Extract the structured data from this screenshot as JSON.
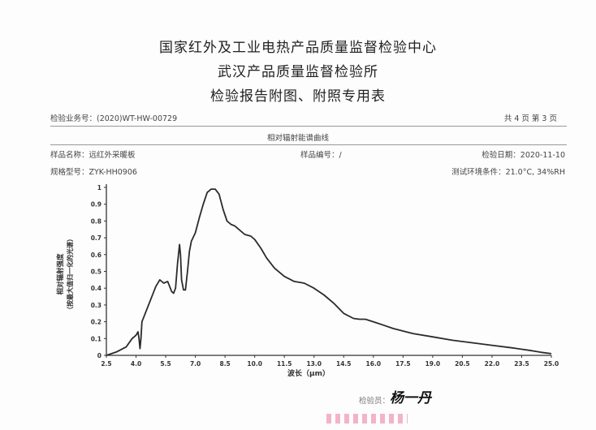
{
  "header": {
    "line1": "国家红外及工业电热产品质量监督检验中心",
    "line2": "武汉产品质量监督检验所",
    "line3": "检验报告附图、附照专用表"
  },
  "meta": {
    "business_no": "检验业务号：(2020)WT-HW-00729",
    "page": "共 4 页 第 3 页",
    "figure_title": "相对辐射能谱曲线",
    "sample_name": "样品名称：远红外采暖板",
    "sample_no": "样品编号：/",
    "test_date": "检验日期：2020-11-10",
    "model": "规格型号：ZYK-HH0906",
    "conditions": "测试环境条件：21.0°C, 34%RH",
    "inspector_label": "检验员：",
    "inspector_signature": "杨一丹"
  },
  "chart_data": {
    "type": "line",
    "xlabel": "波长（μm）",
    "ylabel": [
      "相对辐射强度",
      "（按最大值归一化的光谱）"
    ],
    "xlim": [
      2.5,
      25.0
    ],
    "ylim": [
      0,
      1
    ],
    "x_ticks": [
      "2.5",
      "4.0",
      "5.5",
      "7.0",
      "8.5",
      "10.0",
      "11.5",
      "13.0",
      "14.5",
      "16.0",
      "17.5",
      "19.0",
      "20.5",
      "22.0",
      "23.5",
      "25.0"
    ],
    "y_ticks": [
      "0",
      "0.1",
      "0.2",
      "0.3",
      "0.4",
      "0.5",
      "0.6",
      "0.7",
      "0.8",
      "0.9",
      "1"
    ],
    "series": [
      {
        "color": "#2b2b2b",
        "x": [
          2.5,
          3.0,
          3.5,
          3.8,
          4.0,
          4.1,
          4.15,
          4.2,
          4.25,
          4.3,
          4.5,
          4.8,
          5.0,
          5.2,
          5.4,
          5.6,
          5.8,
          5.9,
          6.0,
          6.1,
          6.2,
          6.25,
          6.3,
          6.4,
          6.5,
          6.6,
          6.7,
          6.8,
          7.0,
          7.2,
          7.4,
          7.6,
          7.8,
          8.0,
          8.2,
          8.4,
          8.6,
          8.8,
          9.0,
          9.2,
          9.5,
          9.8,
          10.0,
          10.3,
          10.6,
          11.0,
          11.5,
          12.0,
          12.5,
          13.0,
          13.5,
          14.0,
          14.5,
          15.0,
          15.3,
          15.6,
          16.0,
          16.5,
          17.0,
          17.5,
          18.0,
          19.0,
          20.0,
          21.0,
          22.0,
          23.0,
          24.0,
          24.5,
          25.0
        ],
        "y": [
          0.0,
          0.02,
          0.05,
          0.1,
          0.12,
          0.14,
          0.1,
          0.04,
          0.1,
          0.2,
          0.26,
          0.35,
          0.41,
          0.45,
          0.43,
          0.44,
          0.38,
          0.37,
          0.4,
          0.55,
          0.66,
          0.6,
          0.45,
          0.39,
          0.39,
          0.5,
          0.62,
          0.68,
          0.73,
          0.82,
          0.9,
          0.97,
          0.99,
          0.99,
          0.96,
          0.87,
          0.8,
          0.78,
          0.77,
          0.75,
          0.72,
          0.71,
          0.69,
          0.64,
          0.58,
          0.52,
          0.47,
          0.44,
          0.43,
          0.4,
          0.36,
          0.31,
          0.25,
          0.22,
          0.215,
          0.215,
          0.2,
          0.18,
          0.16,
          0.145,
          0.13,
          0.11,
          0.09,
          0.075,
          0.06,
          0.045,
          0.028,
          0.018,
          0.01
        ]
      }
    ]
  },
  "colors": {
    "curve": "#2b2b2b",
    "axis": "#333333",
    "stamp": "#e86a8e"
  }
}
